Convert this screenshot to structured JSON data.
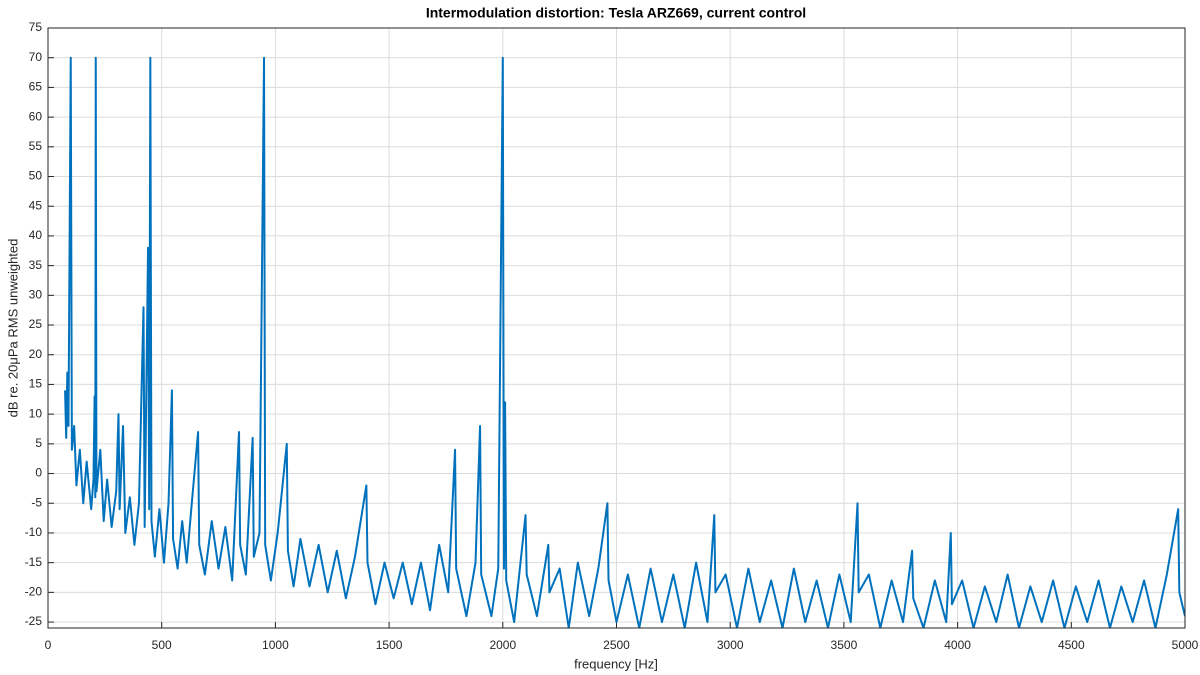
{
  "chart_data": {
    "type": "line",
    "title": "Intermodulation distortion: Tesla ARZ669, current control",
    "xlabel": "frequency [Hz]",
    "ylabel": "dB re. 20μPa RMS unweighted",
    "x": [
      75,
      80,
      85,
      90,
      100,
      105,
      115,
      125,
      140,
      155,
      170,
      190,
      200,
      205,
      208,
      210,
      213,
      230,
      245,
      260,
      280,
      300,
      310,
      315,
      330,
      340,
      360,
      380,
      400,
      420,
      425,
      440,
      445,
      450,
      455,
      470,
      490,
      510,
      530,
      545,
      550,
      570,
      590,
      610,
      630,
      660,
      665,
      690,
      720,
      750,
      780,
      810,
      840,
      845,
      870,
      900,
      905,
      930,
      950,
      955,
      980,
      1010,
      1050,
      1055,
      1080,
      1110,
      1150,
      1190,
      1230,
      1270,
      1310,
      1350,
      1400,
      1405,
      1440,
      1480,
      1520,
      1560,
      1600,
      1640,
      1680,
      1720,
      1760,
      1790,
      1795,
      1840,
      1880,
      1900,
      1905,
      1950,
      1980,
      2000,
      2005,
      2010,
      2015,
      2050,
      2100,
      2105,
      2150,
      2200,
      2205,
      2250,
      2290,
      2330,
      2380,
      2420,
      2460,
      2465,
      2500,
      2550,
      2600,
      2650,
      2700,
      2750,
      2800,
      2850,
      2900,
      2930,
      2935,
      2980,
      3030,
      3080,
      3130,
      3180,
      3230,
      3280,
      3330,
      3380,
      3430,
      3480,
      3530,
      3560,
      3565,
      3610,
      3660,
      3710,
      3760,
      3800,
      3805,
      3850,
      3900,
      3950,
      3970,
      3975,
      4020,
      4070,
      4120,
      4170,
      4220,
      4270,
      4320,
      4370,
      4420,
      4470,
      4520,
      4570,
      4620,
      4670,
      4720,
      4770,
      4820,
      4870,
      4920,
      4970,
      4975,
      5000
    ],
    "series": [
      {
        "color": "#0072bd",
        "values": [
          14,
          6,
          17,
          8,
          70,
          4,
          8,
          -2,
          4,
          -5,
          2,
          -6,
          -1,
          13,
          -4,
          70,
          -3,
          4,
          -8,
          -1,
          -9,
          -3,
          10,
          -6,
          8,
          -10,
          -4,
          -12,
          -5,
          28,
          -9,
          38,
          -6,
          70,
          -8,
          -14,
          -6,
          -15,
          -5,
          14,
          -11,
          -16,
          -8,
          -15,
          -6,
          7,
          -12,
          -17,
          -8,
          -16,
          -9,
          -18,
          7,
          -12,
          -17,
          6,
          -14,
          -10,
          70,
          -12,
          -18,
          -10,
          5,
          -13,
          -19,
          -11,
          -19,
          -12,
          -20,
          -13,
          -21,
          -14,
          -2,
          -15,
          -22,
          -15,
          -21,
          -15,
          -22,
          -15,
          -23,
          -12,
          -20,
          4,
          -16,
          -24,
          -15,
          8,
          -17,
          -24,
          -16,
          70,
          -16,
          12,
          -18,
          -25,
          -7,
          -17,
          -24,
          -12,
          -20,
          -16,
          -26,
          -15,
          -24,
          -16,
          -5,
          -18,
          -25,
          -17,
          -26,
          -16,
          -25,
          -17,
          -26,
          -15,
          -25,
          -7,
          -20,
          -17,
          -26,
          -16,
          -25,
          -18,
          -26,
          -16,
          -25,
          -18,
          -26,
          -17,
          -25,
          -5,
          -20,
          -17,
          -26,
          -18,
          -25,
          -13,
          -21,
          -26,
          -18,
          -25,
          -10,
          -22,
          -18,
          -26,
          -19,
          -25,
          -17,
          -26,
          -19,
          -25,
          -18,
          -26,
          -19,
          -25,
          -18,
          -26,
          -19,
          -25,
          -18,
          -26,
          -17,
          -6,
          -20,
          -24
        ]
      }
    ],
    "xlim": [
      0,
      5000
    ],
    "ylim": [
      -26,
      75
    ],
    "xticks": [
      0,
      500,
      1000,
      1500,
      2000,
      2500,
      3000,
      3500,
      4000,
      4500,
      5000
    ],
    "yticks": [
      -25,
      -20,
      -15,
      -10,
      -5,
      0,
      5,
      10,
      15,
      20,
      25,
      30,
      35,
      40,
      45,
      50,
      55,
      60,
      65,
      70,
      75
    ],
    "grid": true
  }
}
